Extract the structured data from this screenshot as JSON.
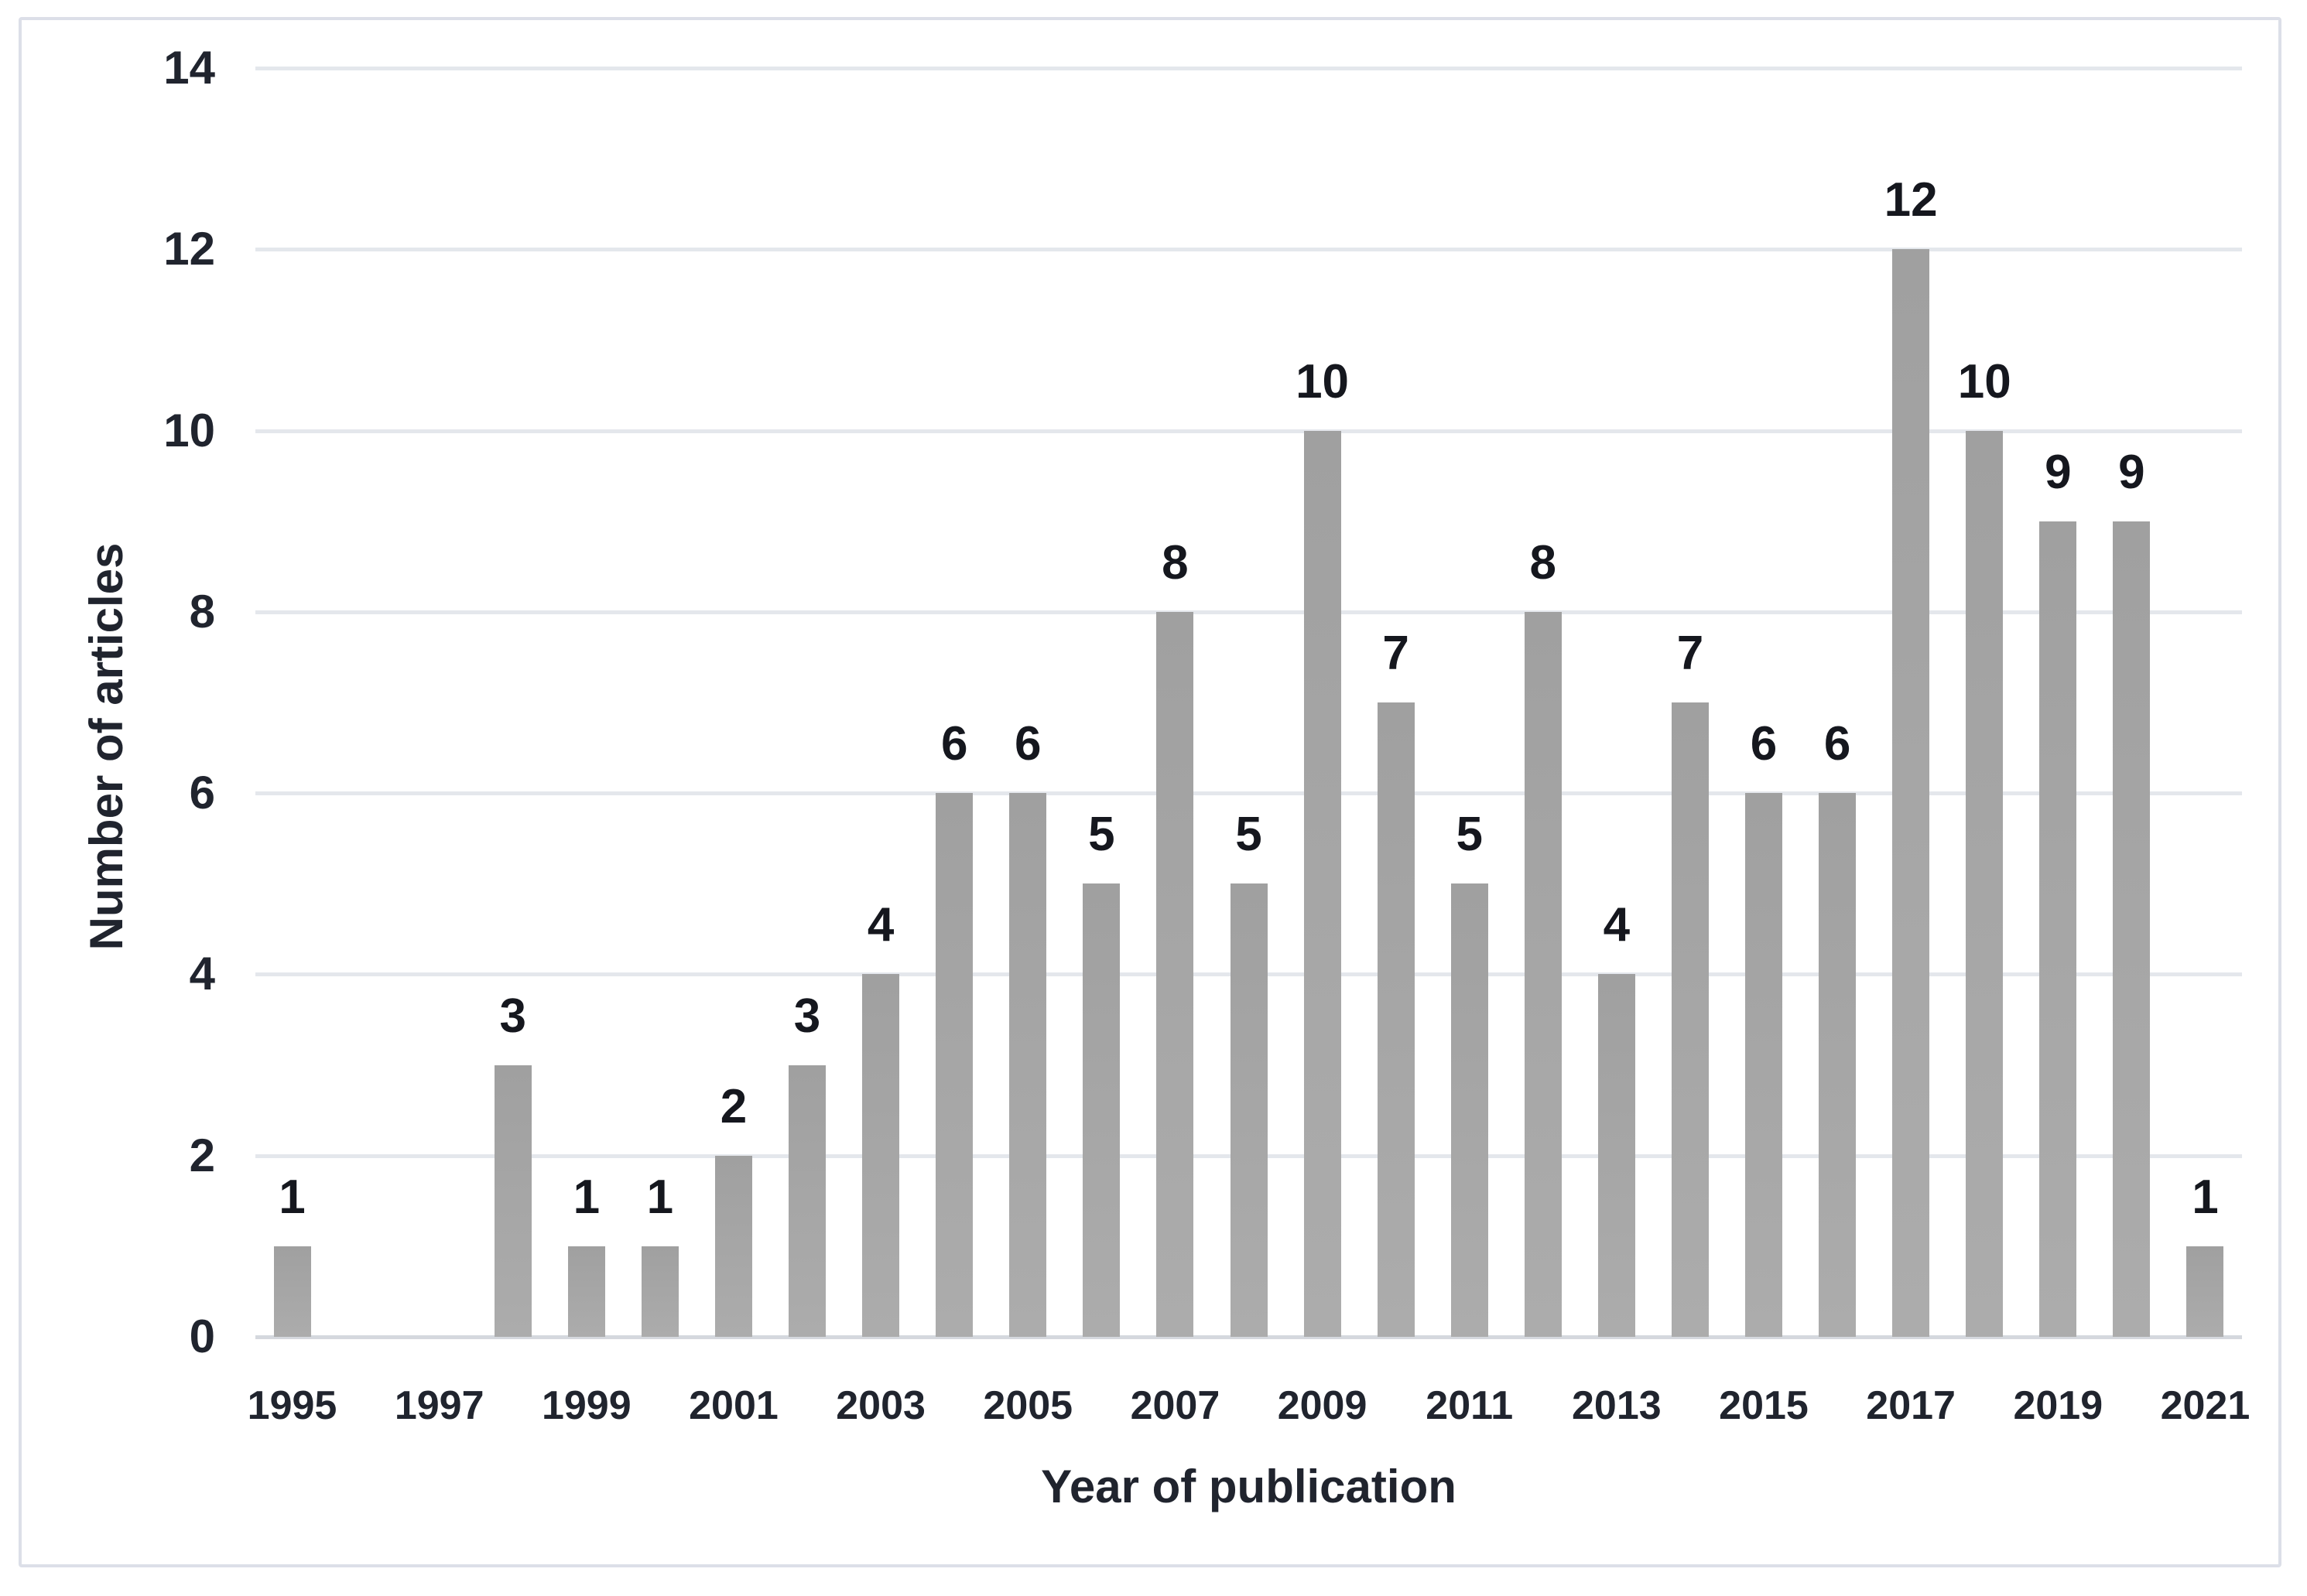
{
  "chart_data": {
    "type": "bar",
    "title": "",
    "xlabel": "Year of publication",
    "ylabel": "Number of articles",
    "categories": [
      "1995",
      "1996",
      "1997",
      "1998",
      "1999",
      "2000",
      "2001",
      "2002",
      "2003",
      "2004",
      "2005",
      "2006",
      "2007",
      "2008",
      "2009",
      "2010",
      "2011",
      "2012",
      "2013",
      "2014",
      "2015",
      "2016",
      "2017",
      "2018",
      "2019",
      "2020",
      "2021"
    ],
    "values": [
      1,
      0,
      0,
      3,
      1,
      1,
      2,
      3,
      4,
      6,
      6,
      5,
      8,
      5,
      10,
      7,
      5,
      8,
      4,
      7,
      6,
      6,
      12,
      10,
      9,
      9,
      1
    ],
    "value_labels_shown_for_nonzero_bars": true,
    "x_axis_tick_labels": [
      "1995",
      "1997",
      "1999",
      "2001",
      "2003",
      "2005",
      "2007",
      "2009",
      "2011",
      "2013",
      "2015",
      "2017",
      "2019",
      "2021"
    ],
    "y_axis_tick_values": [
      0,
      2,
      4,
      6,
      8,
      10,
      12,
      14
    ],
    "ylim": [
      0,
      14
    ],
    "y_tick_step": 2,
    "grid": "horizontal",
    "legend": "none",
    "colors": {
      "bar": "#a5a5a5",
      "bar_gradient_top": "#a0a0a0",
      "bar_gradient_bottom": "#acacac",
      "value_label_text": "#15171e",
      "axis_text": "#20242e",
      "gridline": "#e4e7ec",
      "baseline": "#d5d8de",
      "frame_border": "#dcdfe8",
      "background": "#ffffff"
    }
  }
}
